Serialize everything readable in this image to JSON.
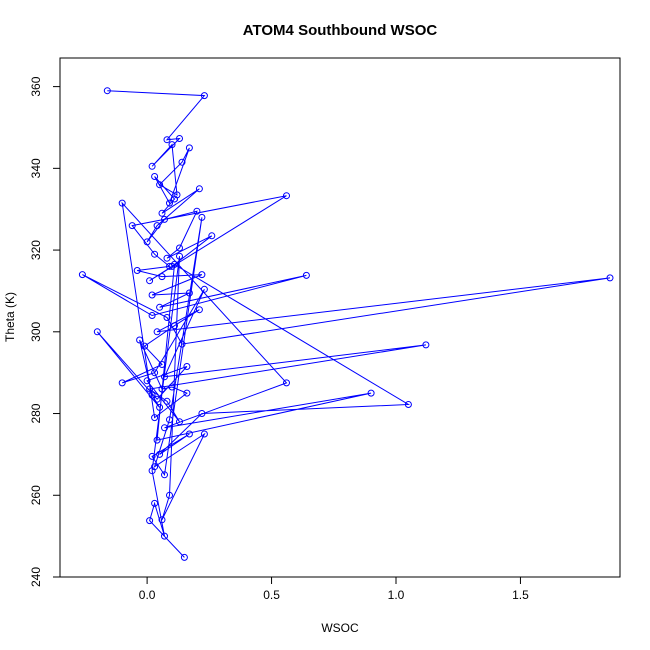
{
  "chart_data": {
    "type": "line",
    "title": "ATOM4 Southbound WSOC",
    "xlabel": "WSOC",
    "ylabel": "Theta (K)",
    "xlim": [
      -0.35,
      1.9
    ],
    "ylim": [
      240,
      367
    ],
    "xticks": [
      0.0,
      0.5,
      1.0,
      1.5
    ],
    "xtick_labels": [
      "0.0",
      "0.5",
      "1.0",
      "1.5"
    ],
    "yticks": [
      240,
      260,
      280,
      300,
      320,
      340,
      360
    ],
    "ytick_labels": [
      "240",
      "260",
      "280",
      "300",
      "320",
      "340",
      "360"
    ],
    "grid": false,
    "legend": "none",
    "marker": "open-circle",
    "color": "#0000ff",
    "series": [
      {
        "x": [
          -0.16,
          0.23,
          0.08,
          0.13,
          0.02,
          0.1,
          0.12,
          0.05,
          0.14,
          0.17,
          0.09,
          0.03,
          0.11,
          0.06,
          0.21,
          0.04,
          0.0,
          0.07,
          0.2,
          0.13,
          0.08,
          0.26,
          0.1,
          0.01,
          0.56,
          -0.06,
          0.03,
          0.09,
          -0.04,
          0.06,
          0.22,
          0.02,
          0.17,
          0.05,
          0.64,
          0.02,
          -0.26,
          0.08,
          0.14,
          1.86,
          0.04,
          0.21,
          0.11,
          -0.01,
          0.06,
          -0.1,
          0.03,
          0.23,
          0.07,
          1.12,
          0.01,
          0.08,
          0.13,
          0.0,
          0.16,
          0.04,
          -0.2,
          0.05,
          0.02,
          -0.03,
          0.06,
          0.1,
          0.16,
          0.03,
          -0.1,
          0.56,
          0.07,
          0.9,
          0.04,
          0.11,
          1.05,
          0.22,
          0.05,
          0.17,
          0.02,
          0.07,
          0.22,
          0.09,
          0.03,
          0.23,
          0.06,
          0.09,
          0.13,
          0.02,
          0.07,
          0.03,
          0.01,
          0.15
        ],
        "y": [
          359,
          357.8,
          347,
          347.3,
          340.5,
          345.8,
          333.5,
          336,
          341.5,
          345,
          331.5,
          338,
          332.5,
          329,
          335,
          326,
          322,
          327.5,
          329.5,
          320.5,
          318,
          323.5,
          316,
          312.5,
          333.3,
          326,
          319,
          316,
          315,
          313.5,
          314,
          309,
          309.5,
          306,
          313.8,
          304,
          314,
          303.5,
          297,
          313.2,
          300,
          305.4,
          301.5,
          296.5,
          292,
          287.5,
          290,
          310.4,
          289,
          296.8,
          286,
          283,
          278,
          288,
          291.5,
          283.5,
          300,
          281.5,
          284.5,
          298,
          286,
          286.5,
          285,
          279,
          331.5,
          287.5,
          276.5,
          285,
          273.5,
          316.5,
          282.2,
          280,
          270,
          275,
          269.5,
          265,
          328,
          278.5,
          267,
          275,
          254,
          260,
          318.5,
          266,
          250,
          258,
          253.8,
          244.8
        ]
      }
    ]
  }
}
